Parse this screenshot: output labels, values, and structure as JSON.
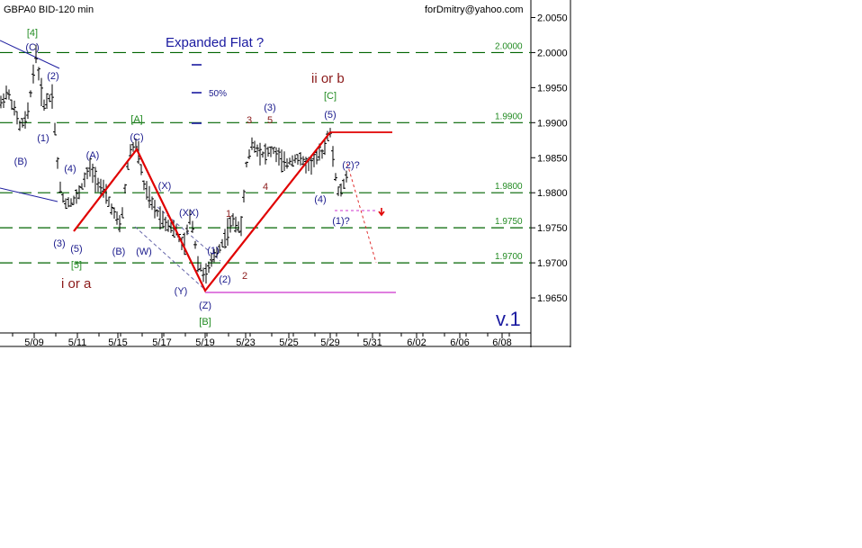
{
  "chart_data": {
    "type": "candlestick",
    "title": "GBPA0 BID-120 min",
    "credit": "forDmitry@yahoo.com",
    "version_label": "v.1",
    "y_range": [
      1.96,
      2.0075
    ],
    "y_ticks": [
      "2.0050",
      "2.0000",
      "1.9950",
      "1.9900",
      "1.9850",
      "1.9800",
      "1.9750",
      "1.9700",
      "1.9650"
    ],
    "x_labels": [
      "5/09",
      "5/11",
      "5/15",
      "5/17",
      "5/19",
      "5/23",
      "5/25",
      "5/29",
      "5/31",
      "6/02",
      "6/06",
      "6/08"
    ],
    "levels": [
      {
        "value": 2.0,
        "label": "2.0000"
      },
      {
        "value": 1.99,
        "label": "1.9900"
      },
      {
        "value": 1.98,
        "label": "1.9800"
      },
      {
        "value": 1.975,
        "label": "1.9750"
      },
      {
        "value": 1.97,
        "label": "1.9700"
      }
    ],
    "annotations": {
      "pattern_title": "Expanded Flat ?",
      "fib_label": "50%",
      "left_label": "i or a",
      "right_label": "ii or b",
      "wave_labels": [
        {
          "text": "[4]",
          "color": "#228B22"
        },
        {
          "text": "(C)",
          "color": "#1a1a8c"
        },
        {
          "text": "(2)",
          "color": "#1a1a8c"
        },
        {
          "text": "(1)",
          "color": "#1a1a8c"
        },
        {
          "text": "(B)",
          "color": "#1a1a8c"
        },
        {
          "text": "(3)",
          "color": "#1a1a8c"
        },
        {
          "text": "(4)",
          "color": "#1a1a8c"
        },
        {
          "text": "(5)",
          "color": "#1a1a8c"
        },
        {
          "text": "[5]",
          "color": "#228B22"
        },
        {
          "text": "(A)",
          "color": "#1a1a8c"
        },
        {
          "text": "(B)",
          "color": "#1a1a8c"
        },
        {
          "text": "[A]",
          "color": "#228B22"
        },
        {
          "text": "(C)",
          "color": "#1a1a8c"
        },
        {
          "text": "(W)",
          "color": "#1a1a8c"
        },
        {
          "text": "(X)",
          "color": "#1a1a8c"
        },
        {
          "text": "(XX)",
          "color": "#1a1a8c"
        },
        {
          "text": "(Y)",
          "color": "#1a1a8c"
        },
        {
          "text": "(Z)",
          "color": "#1a1a8c"
        },
        {
          "text": "[B]",
          "color": "#228B22"
        },
        {
          "text": "(1)",
          "color": "#1a1a8c"
        },
        {
          "text": "(2)",
          "color": "#1a1a8c"
        },
        {
          "text": "1",
          "color": "#8B1A1A"
        },
        {
          "text": "2",
          "color": "#8B1A1A"
        },
        {
          "text": "3",
          "color": "#8B1A1A"
        },
        {
          "text": "(3)",
          "color": "#1a1a8c"
        },
        {
          "text": "5",
          "color": "#8B1A1A"
        },
        {
          "text": "4",
          "color": "#8B1A1A"
        },
        {
          "text": "[C]",
          "color": "#228B22"
        },
        {
          "text": "(5)",
          "color": "#1a1a8c"
        },
        {
          "text": "(4)",
          "color": "#1a1a8c"
        },
        {
          "text": "(2)?",
          "color": "#1a1a8c"
        },
        {
          "text": "(1)?",
          "color": "#1a1a8c"
        }
      ]
    },
    "colors": {
      "price_bar": "#000000",
      "level_line": "#006400",
      "level_label": "#228B22",
      "zigzag": "#e00000",
      "wave_label": "#1a1a8c",
      "title_blue": "#1a1aa0",
      "dark_red": "#8B1A1A",
      "magenta": "#cc33cc",
      "trendline": "#2020a0"
    }
  }
}
